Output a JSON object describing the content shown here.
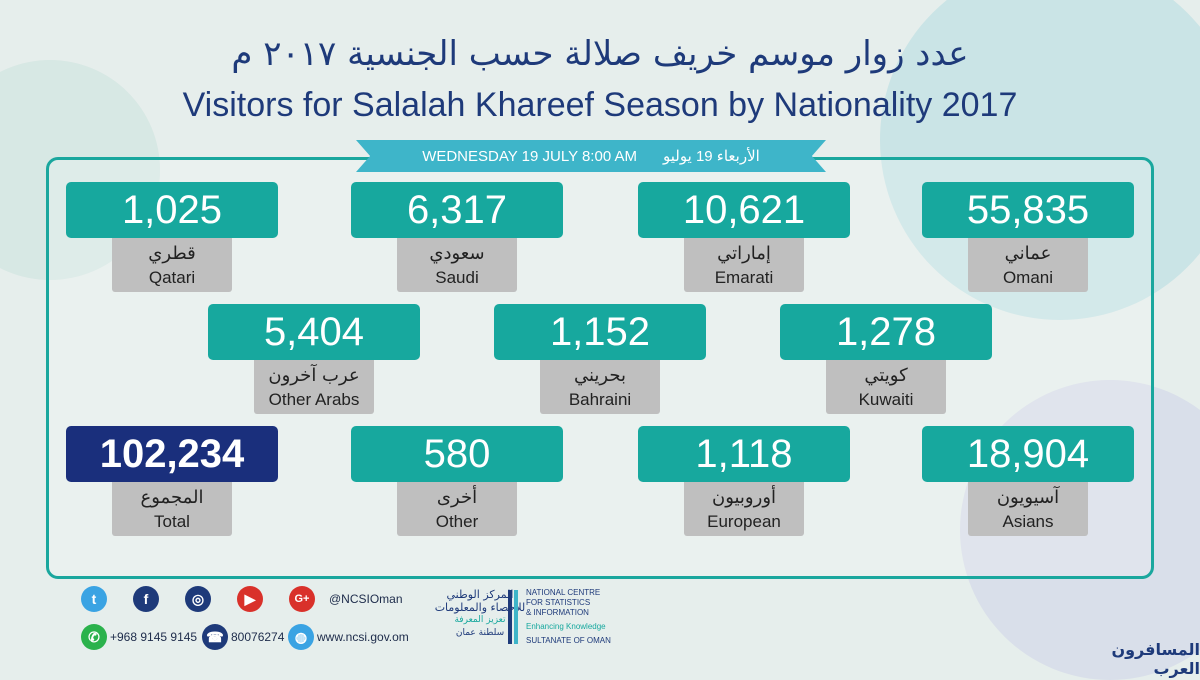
{
  "header": {
    "title_ar": "عدد زوار موسم خريف صلالة حسب الجنسية ٢٠١٧ م",
    "title_en": "Visitors for Salalah Khareef Season by Nationality 2017"
  },
  "ribbon": {
    "date_en": "WEDNESDAY 19 JULY  8:00 AM",
    "date_ar": "الأربعاء 19 يوليو"
  },
  "stats": [
    {
      "value": "1,025",
      "label_ar": "قطري",
      "label_en": "Qatari"
    },
    {
      "value": "6,317",
      "label_ar": "سعودي",
      "label_en": "Saudi"
    },
    {
      "value": "10,621",
      "label_ar": "إماراتي",
      "label_en": "Emarati"
    },
    {
      "value": "55,835",
      "label_ar": "عماني",
      "label_en": "Omani"
    },
    {
      "value": "5,404",
      "label_ar": "عرب آخرون",
      "label_en": "Other Arabs"
    },
    {
      "value": "1,152",
      "label_ar": "بحريني",
      "label_en": "Bahraini"
    },
    {
      "value": "1,278",
      "label_ar": "كويتي",
      "label_en": "Kuwaiti"
    },
    {
      "value": "102,234",
      "label_ar": "المجموع",
      "label_en": "Total"
    },
    {
      "value": "580",
      "label_ar": "أخرى",
      "label_en": "Other"
    },
    {
      "value": "1,118",
      "label_ar": "أوروبيون",
      "label_en": "European"
    },
    {
      "value": "18,904",
      "label_ar": "آسيويون",
      "label_en": "Asians"
    }
  ],
  "footer": {
    "handle": "@NCSIOman",
    "whatsapp": "+968 9145 9145",
    "phone": "80076274",
    "website": "www.ncsi.gov.om",
    "social_icons": [
      "twitter-icon",
      "facebook-icon",
      "instagram-icon",
      "youtube-icon",
      "googleplus-icon"
    ],
    "logo_ar_line1": "المركز الوطني",
    "logo_ar_line2": "للإحصاء والمعلومات",
    "logo_ar_line3": "تعزيز المعرفة",
    "logo_ar_line4": "سلطنة عمان",
    "logo_en_line1": "NATIONAL CENTRE",
    "logo_en_line2": "FOR STATISTICS",
    "logo_en_line3": "& INFORMATION",
    "logo_en_line4": "Enhancing Knowledge",
    "logo_en_line5": "SULTANATE OF OMAN"
  },
  "watermark": "المسافرون العرب",
  "colors": {
    "teal": "#17a89e",
    "navy": "#1a2f7c",
    "grey": "#bfbfbf",
    "ribbon": "#3eb5c9"
  }
}
